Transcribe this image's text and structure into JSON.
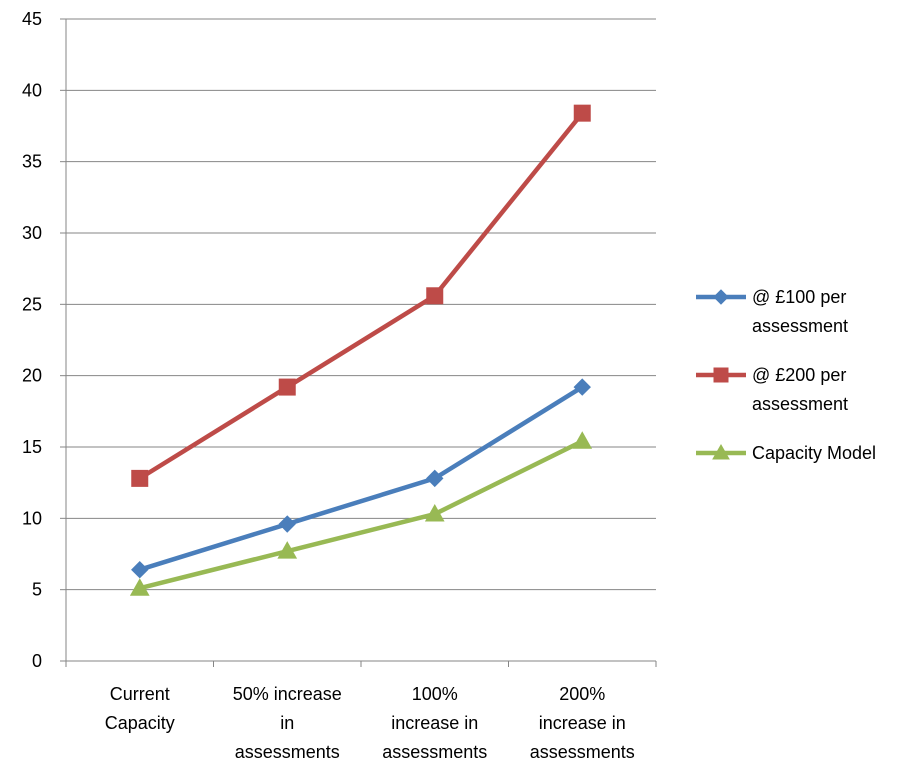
{
  "chart_data": {
    "type": "line",
    "title": "",
    "xlabel": "",
    "ylabel": "",
    "categories": [
      [
        "Current",
        "Capacity"
      ],
      [
        "50% increase",
        "in",
        "assessments"
      ],
      [
        "100%",
        "increase in",
        "assessments"
      ],
      [
        "200%",
        "increase in",
        "assessments"
      ]
    ],
    "ylim": [
      0,
      45
    ],
    "yticks": [
      0,
      5,
      10,
      15,
      20,
      25,
      30,
      35,
      40,
      45
    ],
    "grid": "horizontal",
    "legend_position": "right",
    "series": [
      {
        "name": [
          "@ £100 per",
          "assessment"
        ],
        "values": [
          6.4,
          9.6,
          12.8,
          19.2
        ],
        "color": "#4a7ebb",
        "marker": "diamond"
      },
      {
        "name": [
          "@ £200 per",
          "assessment"
        ],
        "values": [
          12.8,
          19.2,
          25.6,
          38.4
        ],
        "color": "#be4b48",
        "marker": "square"
      },
      {
        "name": [
          "Capacity Model"
        ],
        "values": [
          5.1,
          7.7,
          10.3,
          15.4
        ],
        "color": "#98b954",
        "marker": "triangle"
      }
    ]
  }
}
